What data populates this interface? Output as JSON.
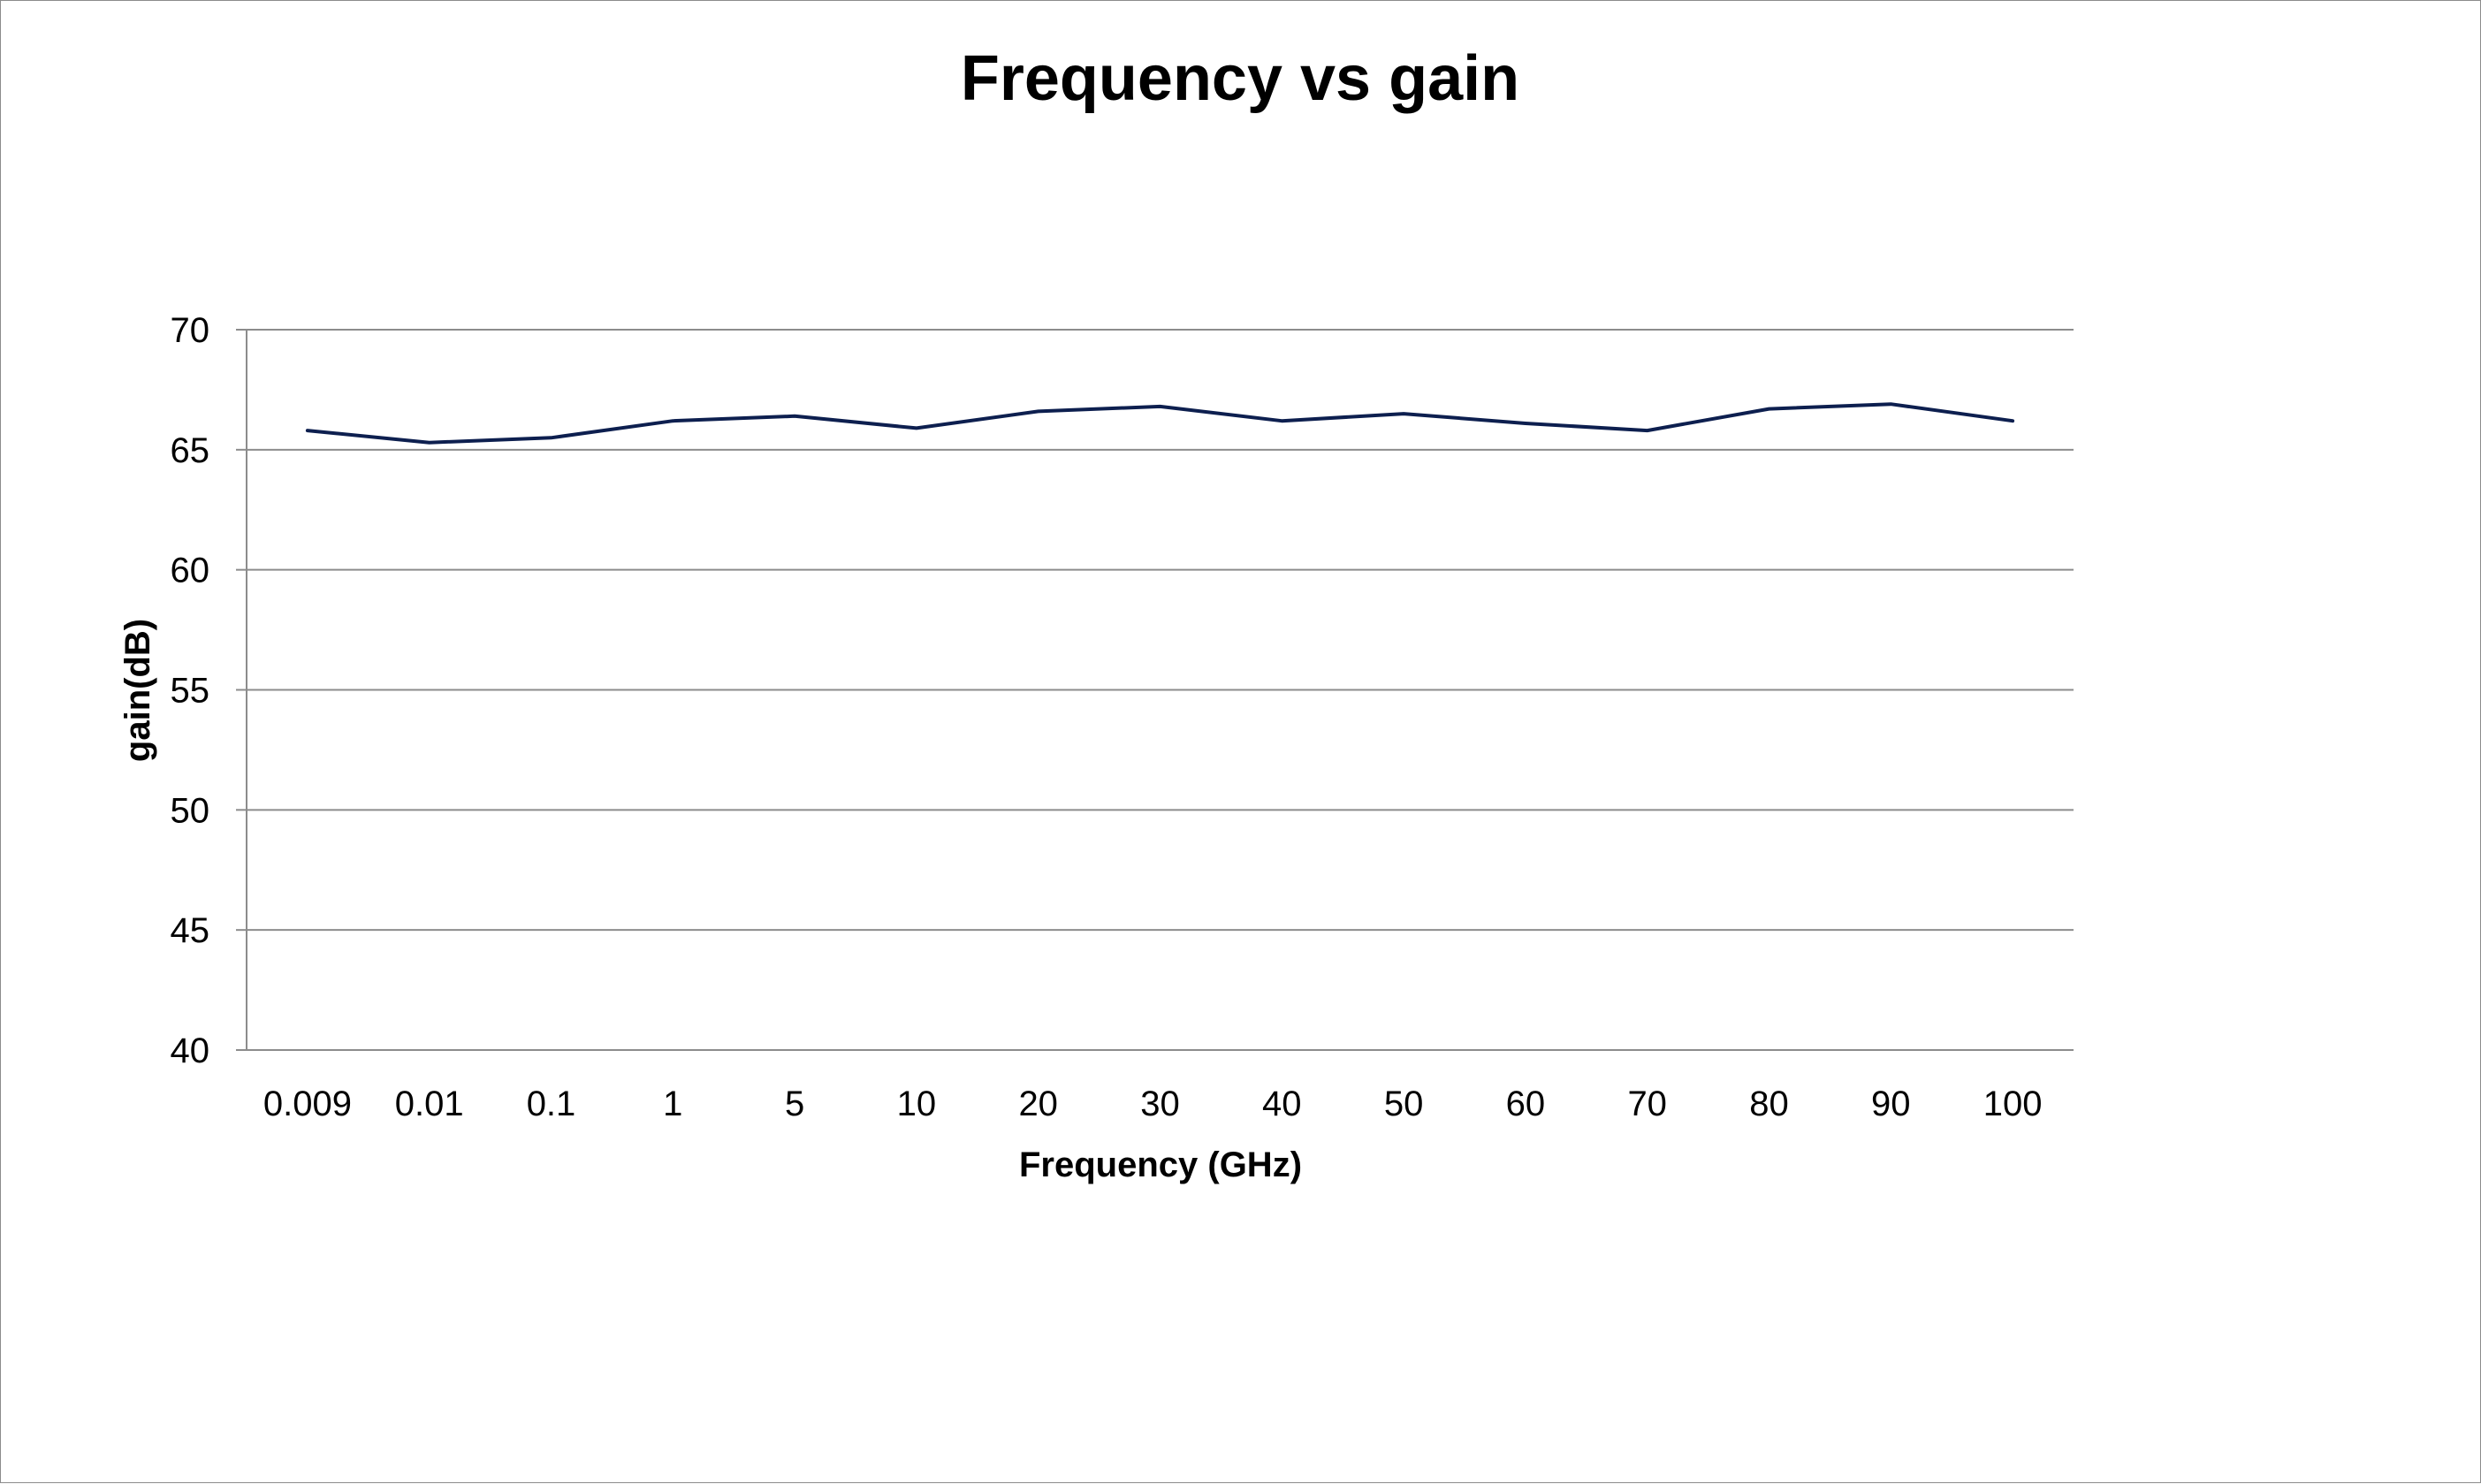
{
  "chart_data": {
    "type": "line",
    "title": "Frequency vs gain",
    "xlabel": "Frequency (GHz)",
    "ylabel": "gain(dB)",
    "categories": [
      "0.009",
      "0.01",
      "0.1",
      "1",
      "5",
      "10",
      "20",
      "30",
      "40",
      "50",
      "60",
      "70",
      "80",
      "90",
      "100"
    ],
    "series": [
      {
        "values": [
          65.8,
          65.3,
          65.5,
          66.2,
          66.4,
          65.9,
          66.6,
          66.8,
          66.2,
          66.5,
          66.1,
          65.8,
          66.7,
          66.9,
          66.2
        ],
        "color": "#0d1f4f"
      }
    ],
    "ylim": [
      40,
      70
    ],
    "yticks": [
      40,
      45,
      50,
      55,
      60,
      65,
      70
    ],
    "grid": true,
    "legend": "none"
  }
}
